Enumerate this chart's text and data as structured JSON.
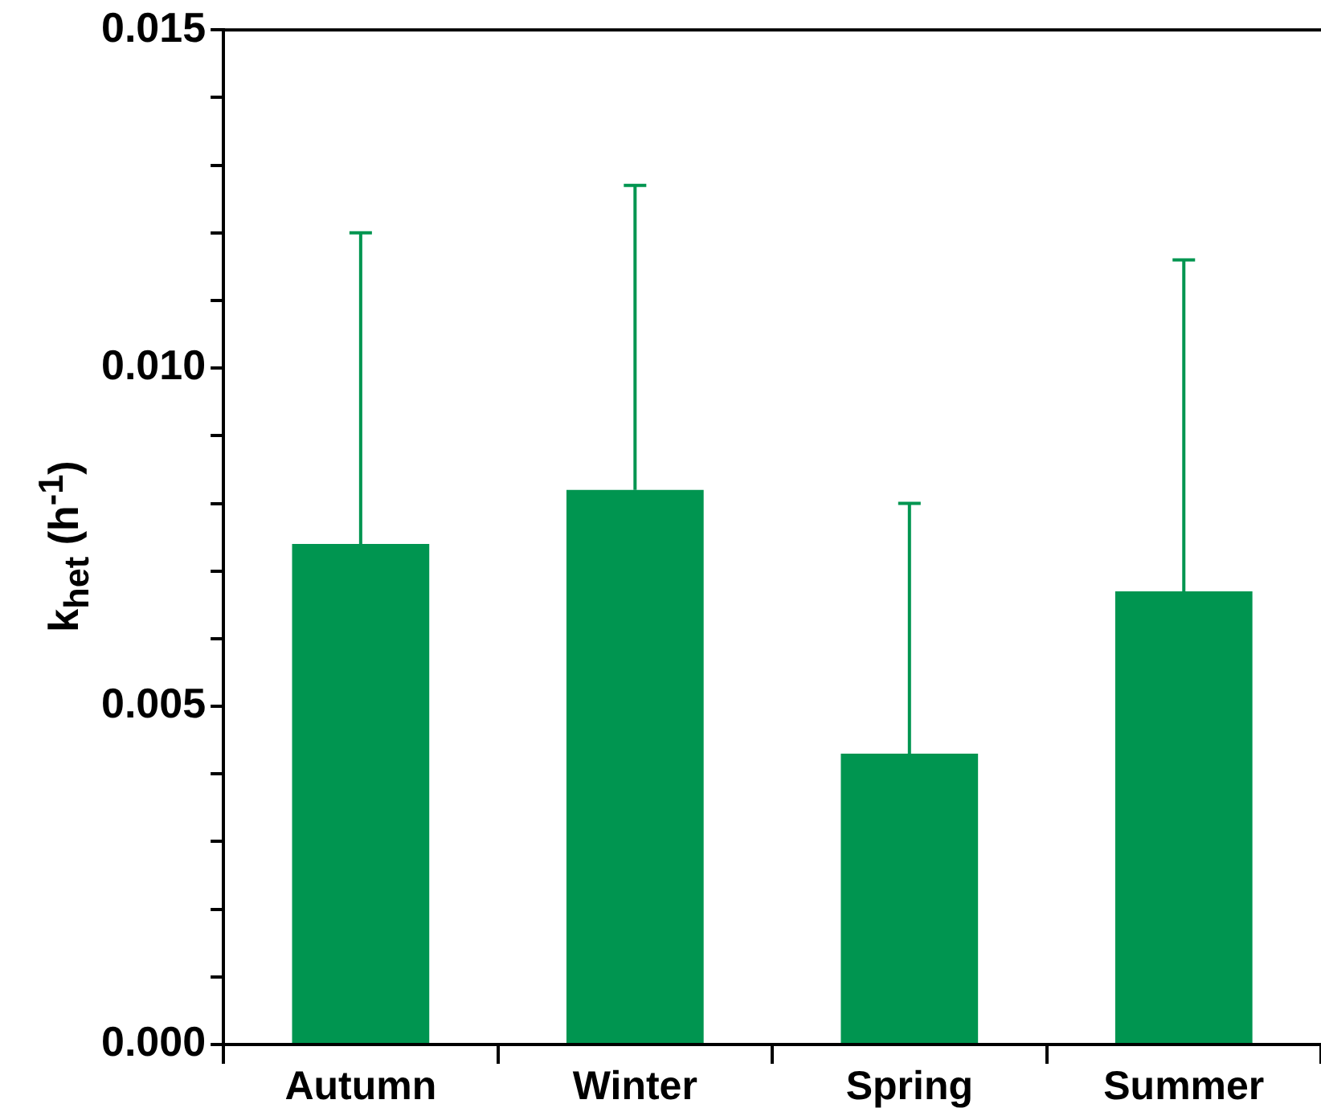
{
  "chart_data": {
    "type": "bar",
    "ylabel": "k$_{het}$ (h$^{-1}$)",
    "categories": [
      "Autumn",
      "Winter",
      "Spring",
      "Summer"
    ],
    "values": [
      0.0074,
      0.0082,
      0.0043,
      0.0067
    ],
    "errors": [
      [
        0.0074,
        0.012
      ],
      [
        0.0082,
        0.0127
      ],
      [
        0.0043,
        0.008
      ],
      [
        0.0067,
        0.0116
      ]
    ],
    "color": "#009550",
    "ylim": [
      0,
      0.015
    ],
    "yticks": [
      {
        "value": 0,
        "label": "0.000"
      },
      {
        "value": 0.001,
        "label": null
      },
      {
        "value": 0.002,
        "label": null
      },
      {
        "value": 0.003,
        "label": null
      },
      {
        "value": 0.004,
        "label": null
      },
      {
        "value": 0.005,
        "label": "0.005"
      },
      {
        "value": 0.006,
        "label": null
      },
      {
        "value": 0.007,
        "label": null
      },
      {
        "value": 0.008,
        "label": null
      },
      {
        "value": 0.009,
        "label": null
      },
      {
        "value": 0.01,
        "label": "0.010"
      },
      {
        "value": 0.011,
        "label": null
      },
      {
        "value": 0.012,
        "label": null
      },
      {
        "value": 0.013,
        "label": null
      },
      {
        "value": 0.014,
        "label": null
      },
      {
        "value": 0.015,
        "label": "0.015"
      }
    ]
  }
}
